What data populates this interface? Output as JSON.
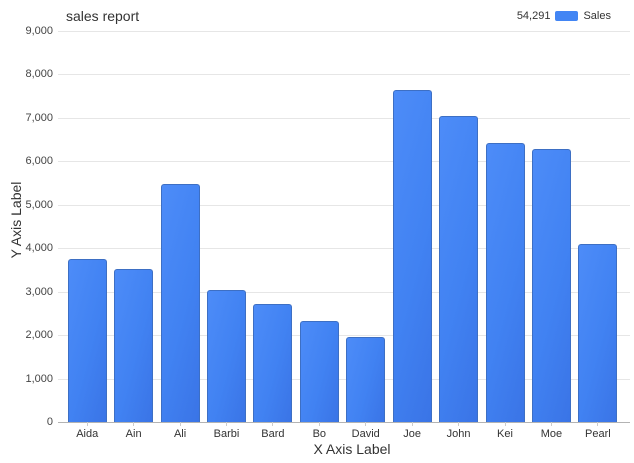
{
  "title": "sales report",
  "legend": {
    "value": "54,291",
    "label": "Sales",
    "swatch_color": "#4285f4"
  },
  "axes": {
    "x_title": "X Axis Label",
    "y_title": "Y Axis Label"
  },
  "colors": {
    "bar_fill": "#4285f4",
    "bar_border": "#3d6fc4",
    "gridline": "#e6e6e6",
    "baseline": "#b3b3b3",
    "text": "#333333"
  },
  "chart_data": {
    "type": "bar",
    "title": "sales report",
    "xlabel": "X Axis Label",
    "ylabel": "Y Axis Label",
    "categories": [
      "Aida",
      "Ain",
      "Ali",
      "Barbi",
      "Bard",
      "Bo",
      "David",
      "Joe",
      "John",
      "Kei",
      "Moe",
      "Pearl"
    ],
    "series": [
      {
        "name": "Sales",
        "total": 54291,
        "values": [
          3750,
          3515,
          5480,
          3030,
          2726,
          2332,
          1948,
          7650,
          7040,
          6430,
          6290,
          4100
        ]
      }
    ],
    "ylim": [
      0,
      9000
    ],
    "ytick_step": 1000,
    "grid": true,
    "legend_position": "top-right"
  }
}
